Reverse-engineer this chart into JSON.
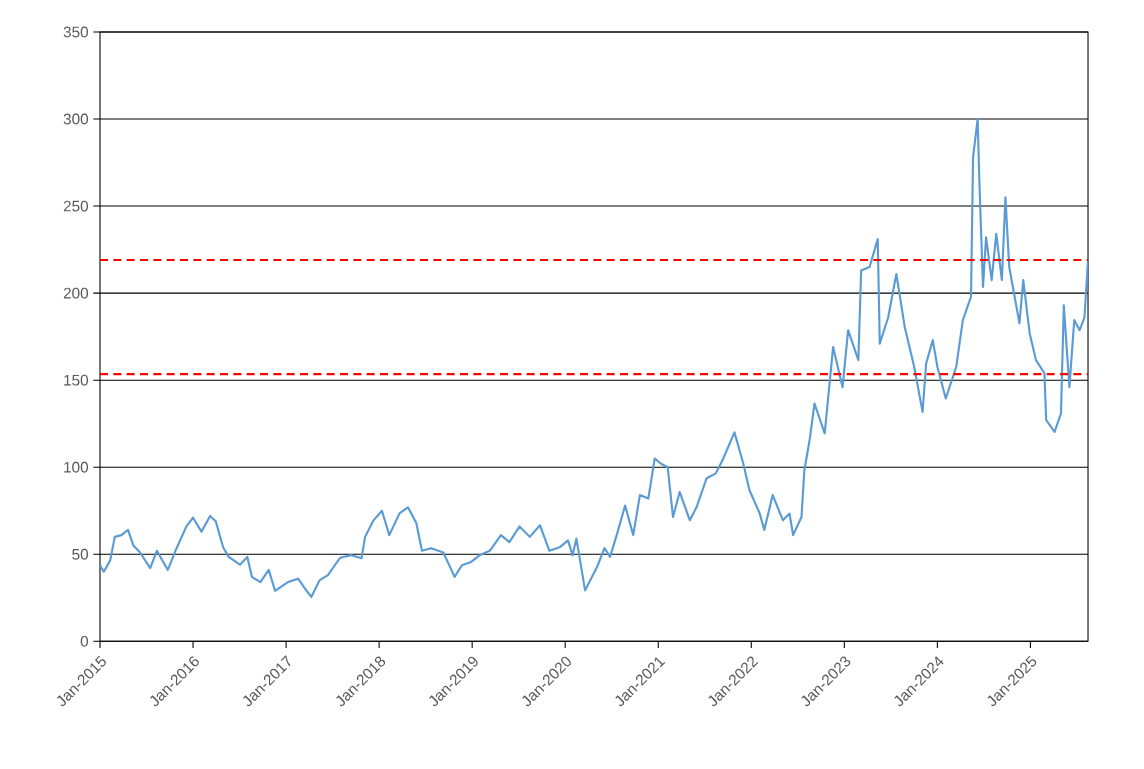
{
  "chart_data": {
    "type": "line",
    "x": [
      "2015-01-01",
      "2015-01-16",
      "2015-02-10",
      "2015-02-28",
      "2015-03-26",
      "2015-04-21",
      "2015-05-12",
      "2015-06-07",
      "2015-07-17",
      "2015-08-12",
      "2015-09-24",
      "2015-10-24",
      "2015-12-06",
      "2016-01-01",
      "2016-02-03",
      "2016-03-08",
      "2016-03-30",
      "2016-04-28",
      "2016-05-20",
      "2016-07-03",
      "2016-08-01",
      "2016-08-19",
      "2016-09-21",
      "2016-10-24",
      "2016-11-18",
      "2017-01-08",
      "2017-02-17",
      "2017-03-15",
      "2017-04-10",
      "2017-05-12",
      "2017-06-14",
      "2017-08-01",
      "2017-09-14",
      "2017-10-24",
      "2017-11-07",
      "2017-12-10",
      "2018-01-12",
      "2018-02-10",
      "2018-03-22",
      "2018-04-24",
      "2018-05-27",
      "2018-06-18",
      "2018-07-24",
      "2018-09-10",
      "2018-10-24",
      "2018-11-22",
      "2018-12-28",
      "2019-01-30",
      "2019-03-11",
      "2019-04-24",
      "2019-05-27",
      "2019-07-06",
      "2019-08-15",
      "2019-09-24",
      "2019-10-31",
      "2019-12-10",
      "2020-01-12",
      "2020-01-30",
      "2020-02-14",
      "2020-03-19",
      "2020-05-05",
      "2020-06-03",
      "2020-06-25",
      "2020-07-21",
      "2020-08-23",
      "2020-09-24",
      "2020-10-20",
      "2020-11-22",
      "2020-12-17",
      "2021-01-12",
      "2021-02-07",
      "2021-02-28",
      "2021-03-26",
      "2021-05-05",
      "2021-05-31",
      "2021-07-10",
      "2021-08-15",
      "2021-09-10",
      "2021-10-27",
      "2021-11-29",
      "2021-12-25",
      "2022-02-03",
      "2022-02-21",
      "2022-03-26",
      "2022-05-05",
      "2022-05-31",
      "2022-06-14",
      "2022-07-17",
      "2022-07-28",
      "2022-08-19",
      "2022-09-06",
      "2022-10-16",
      "2022-11-18",
      "2022-12-25",
      "2023-01-16",
      "2023-02-25",
      "2023-03-08",
      "2023-04-10",
      "2023-05-12",
      "2023-05-20",
      "2023-06-22",
      "2023-07-24",
      "2023-08-26",
      "2023-10-02",
      "2023-11-04",
      "2023-11-18",
      "2023-12-14",
      "2024-01-01",
      "2024-02-03",
      "2024-03-15",
      "2024-04-10",
      "2024-05-12",
      "2024-05-20",
      "2024-06-07",
      "2024-06-14",
      "2024-06-28",
      "2024-07-10",
      "2024-08-01",
      "2024-08-19",
      "2024-09-10",
      "2024-09-24",
      "2024-10-09",
      "2024-11-18",
      "2024-12-03",
      "2024-12-28",
      "2025-01-23",
      "2025-02-25",
      "2025-03-04",
      "2025-04-06",
      "2025-05-01",
      "2025-05-12",
      "2025-06-03",
      "2025-06-22",
      "2025-07-13",
      "2025-08-01",
      "2025-08-15"
    ],
    "series": [
      {
        "color": "#5b9bd5",
        "values": [
          43.7,
          40,
          46.5,
          60,
          61,
          64,
          55,
          51,
          42,
          52,
          41,
          52,
          66,
          71,
          63,
          72,
          69,
          54,
          48.5,
          44,
          48.5,
          37,
          34,
          41,
          29,
          34,
          36,
          30.5,
          25.5,
          35,
          38,
          48,
          49.5,
          47.7,
          60,
          69.5,
          75,
          61,
          73.5,
          77,
          68,
          52,
          53.5,
          51,
          37,
          43.7,
          45.6,
          49.4,
          52,
          61,
          57,
          66,
          60,
          66.7,
          52,
          54,
          58,
          49.4,
          59,
          29.3,
          42.7,
          53.5,
          48.5,
          61,
          78,
          61,
          84,
          82,
          105,
          102,
          100,
          71.4,
          85.8,
          69.5,
          77,
          93.7,
          96.5,
          104,
          120,
          103,
          86.8,
          73.5,
          64,
          84,
          69.5,
          73.4,
          61,
          71.4,
          98,
          116.7,
          136.6,
          119.5,
          169,
          146,
          178.7,
          161.5,
          213,
          215,
          231,
          171,
          186,
          211,
          180.6,
          157.7,
          131.8,
          159.6,
          173,
          157.7,
          139.5,
          157.7,
          184.5,
          198,
          278,
          300,
          263,
          203.6,
          232,
          207.5,
          234,
          207.5,
          255,
          215,
          182.7,
          207.5,
          177,
          161.5,
          154,
          127,
          120.3,
          131,
          193,
          146,
          184.5,
          178.7,
          186,
          219
        ]
      }
    ],
    "xlim": [
      "2015-01-01",
      "2025-08-15"
    ],
    "xticks": [
      {
        "value": "2015-01-01",
        "label": "Jan-2015"
      },
      {
        "value": "2016-01-01",
        "label": "Jan-2016"
      },
      {
        "value": "2017-01-01",
        "label": "Jan-2017"
      },
      {
        "value": "2018-01-01",
        "label": "Jan-2018"
      },
      {
        "value": "2019-01-01",
        "label": "Jan-2019"
      },
      {
        "value": "2020-01-01",
        "label": "Jan-2020"
      },
      {
        "value": "2021-01-01",
        "label": "Jan-2021"
      },
      {
        "value": "2022-01-01",
        "label": "Jan-2022"
      },
      {
        "value": "2023-01-01",
        "label": "Jan-2023"
      },
      {
        "value": "2024-01-01",
        "label": "Jan-2024"
      },
      {
        "value": "2025-01-01",
        "label": "Jan-2025"
      }
    ],
    "ylim": [
      0,
      350
    ],
    "yticks": [
      0,
      50,
      100,
      150,
      200,
      250,
      300,
      350
    ],
    "grid": "y",
    "marker": "none",
    "line_style": "solid",
    "ref_lines": [
      {
        "axis": "y",
        "value": 219,
        "color": "#ff0000",
        "line_style": "dashed"
      },
      {
        "axis": "y",
        "value": 153.5,
        "color": "#ff0000",
        "line_style": "dashed"
      }
    ]
  }
}
